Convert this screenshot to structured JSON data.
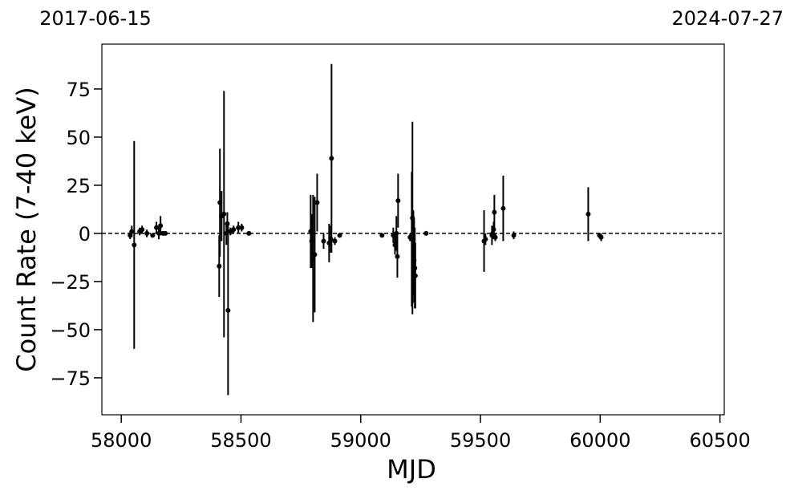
{
  "chart_data": {
    "type": "scatter",
    "xlabel": "MJD",
    "ylabel": "Count Rate (7-40 keV)",
    "xlim": [
      57919,
      60518
    ],
    "ylim": [
      -94.2,
      98.3
    ],
    "xticks": [
      58000,
      58500,
      59000,
      59500,
      60000,
      60500
    ],
    "yticks": [
      {
        "value": -75,
        "label": "−75"
      },
      {
        "value": -50,
        "label": "−50"
      },
      {
        "value": -25,
        "label": "−25"
      },
      0,
      25,
      50,
      75
    ],
    "x2ticks": [
      {
        "value": 57919,
        "label": "2017-06-15"
      },
      {
        "value": 60518,
        "label": "2024-07-27"
      }
    ],
    "hline": 0,
    "color": "#000000",
    "x": [
      58037,
      58044,
      58054,
      58077,
      58087,
      58107,
      58131,
      58147,
      58157,
      58164,
      58174,
      58184,
      58409,
      58412,
      58419,
      58429,
      58439,
      58446,
      58443,
      58456,
      58469,
      58489,
      58503,
      58533,
      58791,
      58795,
      58801,
      58808,
      58818,
      58845,
      58868,
      58878,
      58875,
      58892,
      58912,
      59089,
      59136,
      59143,
      59149,
      59153,
      59156,
      59206,
      59213,
      59216,
      59220,
      59223,
      59226,
      59228,
      59273,
      59515,
      59521,
      59548,
      59551,
      59555,
      59558,
      59562,
      59595,
      59639,
      59950,
      59997,
      60004
    ],
    "values": [
      -1,
      1,
      -6,
      1,
      2,
      0,
      -1,
      3,
      0,
      4,
      0,
      0,
      -17,
      16,
      9,
      10,
      0,
      -40,
      5,
      1,
      2,
      3,
      3,
      0,
      1,
      -4,
      -13,
      -11,
      16,
      -4,
      -5,
      39,
      -3,
      -4,
      -1,
      -1,
      -1,
      -6,
      0,
      -12,
      17,
      -2,
      -3,
      8,
      -10,
      -14,
      -18,
      -22,
      0,
      -4,
      -3,
      -1,
      0,
      2,
      11,
      -2,
      13,
      -1,
      10,
      -1,
      -2
    ],
    "errors": [
      2,
      3,
      54,
      2,
      2,
      2,
      1,
      3,
      3,
      5,
      1,
      1,
      16,
      28,
      13,
      64,
      6,
      44,
      6,
      2,
      2,
      3,
      2,
      1,
      19,
      14,
      33,
      30,
      15,
      4,
      10,
      49,
      7,
      2,
      1,
      1,
      4,
      5,
      9,
      11,
      14,
      2,
      35,
      50,
      22,
      22,
      21,
      17,
      1,
      16,
      3,
      5,
      3,
      4,
      9,
      2,
      17,
      2,
      14,
      1,
      2
    ]
  }
}
